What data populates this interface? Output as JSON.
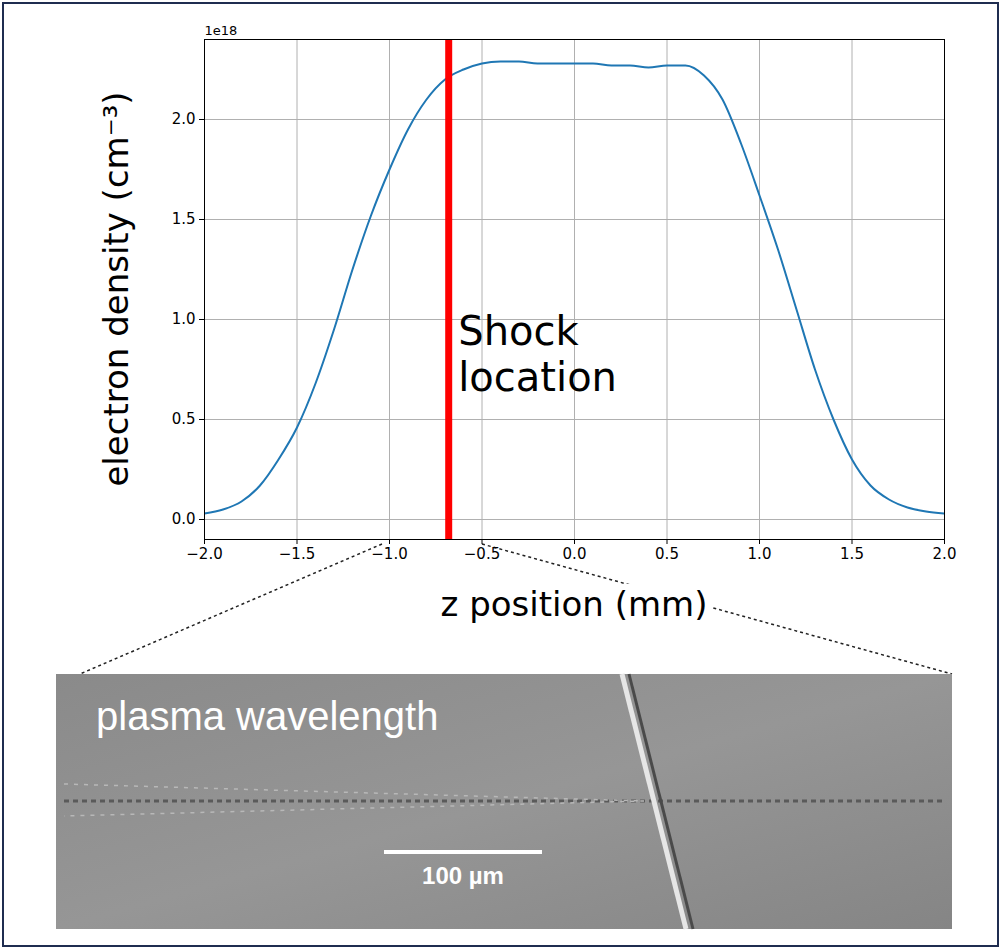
{
  "chart_data": {
    "type": "line",
    "x_label": "z position (mm)",
    "y_label": "electron density (cm⁻³)",
    "y_offset_label": "1e18",
    "x": [
      -2.0,
      -1.9,
      -1.8,
      -1.7,
      -1.6,
      -1.5,
      -1.4,
      -1.3,
      -1.2,
      -1.1,
      -1.0,
      -0.9,
      -0.8,
      -0.7,
      -0.6,
      -0.5,
      -0.4,
      -0.3,
      -0.2,
      -0.1,
      0.0,
      0.1,
      0.2,
      0.3,
      0.4,
      0.5,
      0.6,
      0.7,
      0.8,
      0.9,
      1.0,
      1.1,
      1.2,
      1.3,
      1.4,
      1.5,
      1.6,
      1.7,
      1.8,
      1.9,
      2.0
    ],
    "series": [
      {
        "color": "#1f77b4",
        "values": [
          0.03,
          0.05,
          0.09,
          0.17,
          0.3,
          0.46,
          0.68,
          0.95,
          1.25,
          1.52,
          1.75,
          1.95,
          2.1,
          2.2,
          2.25,
          2.28,
          2.29,
          2.29,
          2.28,
          2.28,
          2.28,
          2.28,
          2.27,
          2.27,
          2.26,
          2.27,
          2.27,
          2.22,
          2.1,
          1.88,
          1.62,
          1.35,
          1.05,
          0.75,
          0.5,
          0.3,
          0.17,
          0.1,
          0.06,
          0.04,
          0.03
        ]
      }
    ],
    "xlim": [
      -2.0,
      2.0
    ],
    "xticks": [
      {
        "value": -2.0,
        "label": "−2.0"
      },
      {
        "value": -1.5,
        "label": "−1.5"
      },
      {
        "value": -1.0,
        "label": "−1.0"
      },
      {
        "value": -0.5,
        "label": "−0.5"
      },
      {
        "value": 0.0,
        "label": "0.0"
      },
      {
        "value": 0.5,
        "label": "0.5"
      },
      {
        "value": 1.0,
        "label": "1.0"
      },
      {
        "value": 1.5,
        "label": "1.5"
      },
      {
        "value": 2.0,
        "label": "2.0"
      }
    ],
    "ylim": [
      -0.1,
      2.4
    ],
    "yticks": [
      {
        "value": 0.0,
        "label": "0.0"
      },
      {
        "value": 0.5,
        "label": "0.5"
      },
      {
        "value": 1.0,
        "label": "1.0"
      },
      {
        "value": 1.5,
        "label": "1.5"
      },
      {
        "value": 2.0,
        "label": "2.0"
      }
    ],
    "grid": true,
    "annotations": [
      {
        "type": "vline",
        "x": -0.68,
        "label": "Shock\nlocation",
        "label_x": -0.65,
        "label_y": 0.83,
        "color": "#ff0000"
      }
    ]
  },
  "inset_image": {
    "label": "plasma wavelength",
    "scale_bar": "100 µm"
  }
}
